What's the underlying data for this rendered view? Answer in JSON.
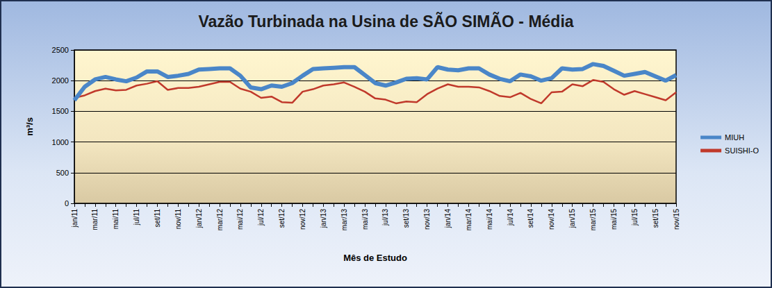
{
  "chart_data": {
    "type": "line",
    "title": "Vazão Turbinada na Usina de SÃO SIMÃO - Média",
    "x_label": "Mês de Estudo",
    "y_label": "m³/s",
    "categories": [
      "jan/11",
      null,
      "mar/11",
      null,
      "mai/11",
      null,
      "jul/11",
      null,
      "set/11",
      null,
      "nov/11",
      null,
      "jan/12",
      null,
      "mar/12",
      null,
      "mai/12",
      null,
      "jul/12",
      null,
      "set/12",
      null,
      "nov/12",
      null,
      "jan/13",
      null,
      "mar/13",
      null,
      "mai/13",
      null,
      "jul/13",
      null,
      "set/13",
      null,
      "nov/13",
      null,
      "jan/14",
      null,
      "mar/14",
      null,
      "mai/14",
      null,
      "jul/14",
      null,
      "set/14",
      null,
      "nov/14",
      null,
      "jan/15",
      null,
      "mar/15",
      null,
      "mai/15",
      null,
      "jul/15",
      null,
      "set/15",
      null,
      "nov/15"
    ],
    "series": [
      {
        "name": "MIUH",
        "color": "#4a86c8",
        "values": [
          1680,
          1900,
          2020,
          2060,
          2020,
          1990,
          2050,
          2150,
          2150,
          2060,
          2080,
          2110,
          2180,
          2190,
          2200,
          2200,
          2080,
          1890,
          1860,
          1920,
          1900,
          1960,
          2080,
          2190,
          2200,
          2210,
          2220,
          2220,
          2090,
          1960,
          1920,
          1970,
          2030,
          2040,
          2020,
          2220,
          2180,
          2170,
          2200,
          2200,
          2100,
          2030,
          1990,
          2100,
          2070,
          2000,
          2040,
          2200,
          2180,
          2190,
          2270,
          2240,
          2160,
          2080,
          2110,
          2140,
          2070,
          2000,
          2090
        ]
      },
      {
        "name": "SUISHI-O",
        "color": "#c0392b",
        "values": [
          1720,
          1760,
          1830,
          1870,
          1840,
          1850,
          1920,
          1950,
          1990,
          1850,
          1880,
          1880,
          1900,
          1940,
          1980,
          1980,
          1870,
          1820,
          1720,
          1740,
          1650,
          1640,
          1820,
          1860,
          1920,
          1940,
          1970,
          1900,
          1820,
          1710,
          1690,
          1630,
          1660,
          1650,
          1780,
          1870,
          1940,
          1900,
          1900,
          1890,
          1830,
          1750,
          1730,
          1800,
          1700,
          1630,
          1810,
          1820,
          1940,
          1910,
          2010,
          1980,
          1860,
          1770,
          1830,
          1780,
          1730,
          1680,
          1810
        ]
      }
    ],
    "ylim": [
      0,
      2500
    ],
    "yticks": [
      0,
      500,
      1000,
      1500,
      2000,
      2500
    ],
    "grid": true,
    "legend": "right"
  }
}
